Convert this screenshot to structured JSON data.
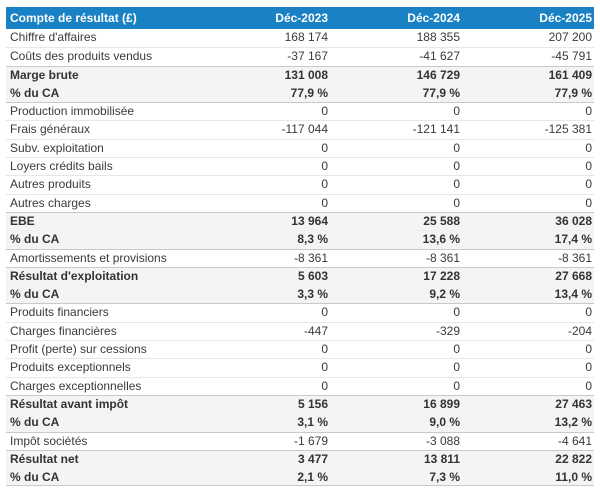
{
  "colors": {
    "header_bg": "#1a82c4",
    "header_text": "#ffffff",
    "highlight_row_bg": "#f4f4f4",
    "divider_light": "#e7e7e7",
    "divider_dark": "#c9c9c9",
    "body_text": "#3a3a3a"
  },
  "header": {
    "label": "Compte de résultat (£)",
    "columns": [
      "Déc-2023",
      "Déc-2024",
      "Déc-2025"
    ]
  },
  "rows": [
    {
      "label": "Chiffre d'affaires",
      "values": [
        "168 174",
        "188 355",
        "207 200"
      ],
      "bold": false
    },
    {
      "label": "Coûts des produits vendus",
      "values": [
        "-37 167",
        "-41 627",
        "-45 791"
      ],
      "bold": false
    },
    {
      "label": "Marge brute",
      "values": [
        "131 008",
        "146 729",
        "161 409"
      ],
      "bold": true
    },
    {
      "label": "% du CA",
      "values": [
        "77,9 %",
        "77,9 %",
        "77,9 %"
      ],
      "bold": true
    },
    {
      "label": "Production immobilisée",
      "values": [
        "0",
        "0",
        "0"
      ],
      "bold": false
    },
    {
      "label": "Frais généraux",
      "values": [
        "-117 044",
        "-121 141",
        "-125 381"
      ],
      "bold": false
    },
    {
      "label": "Subv. exploitation",
      "values": [
        "0",
        "0",
        "0"
      ],
      "bold": false
    },
    {
      "label": "Loyers crédits bails",
      "values": [
        "0",
        "0",
        "0"
      ],
      "bold": false
    },
    {
      "label": "Autres produits",
      "values": [
        "0",
        "0",
        "0"
      ],
      "bold": false
    },
    {
      "label": "Autres charges",
      "values": [
        "0",
        "0",
        "0"
      ],
      "bold": false
    },
    {
      "label": "EBE",
      "values": [
        "13 964",
        "25 588",
        "36 028"
      ],
      "bold": true
    },
    {
      "label": "% du CA",
      "values": [
        "8,3 %",
        "13,6 %",
        "17,4 %"
      ],
      "bold": true
    },
    {
      "label": "Amortissements et provisions",
      "values": [
        "-8 361",
        "-8 361",
        "-8 361"
      ],
      "bold": false
    },
    {
      "label": "Résultat d'exploitation",
      "values": [
        "5 603",
        "17 228",
        "27 668"
      ],
      "bold": true
    },
    {
      "label": "% du CA",
      "values": [
        "3,3 %",
        "9,2 %",
        "13,4 %"
      ],
      "bold": true
    },
    {
      "label": "Produits financiers",
      "values": [
        "0",
        "0",
        "0"
      ],
      "bold": false
    },
    {
      "label": "Charges financières",
      "values": [
        "-447",
        "-329",
        "-204"
      ],
      "bold": false
    },
    {
      "label": "Profit (perte) sur cessions",
      "values": [
        "0",
        "0",
        "0"
      ],
      "bold": false
    },
    {
      "label": "Produits exceptionnels",
      "values": [
        "0",
        "0",
        "0"
      ],
      "bold": false
    },
    {
      "label": "Charges exceptionnelles",
      "values": [
        "0",
        "0",
        "0"
      ],
      "bold": false
    },
    {
      "label": "Résultat avant impôt",
      "values": [
        "5 156",
        "16 899",
        "27 463"
      ],
      "bold": true
    },
    {
      "label": "% du CA",
      "values": [
        "3,1 %",
        "9,0 %",
        "13,2 %"
      ],
      "bold": true
    },
    {
      "label": "Impôt sociétés",
      "values": [
        "-1 679",
        "-3 088",
        "-4 641"
      ],
      "bold": false
    },
    {
      "label": "Résultat net",
      "values": [
        "3 477",
        "13 811",
        "22 822"
      ],
      "bold": true
    },
    {
      "label": "% du CA",
      "values": [
        "2,1 %",
        "7,3 %",
        "11,0 %"
      ],
      "bold": true
    }
  ]
}
